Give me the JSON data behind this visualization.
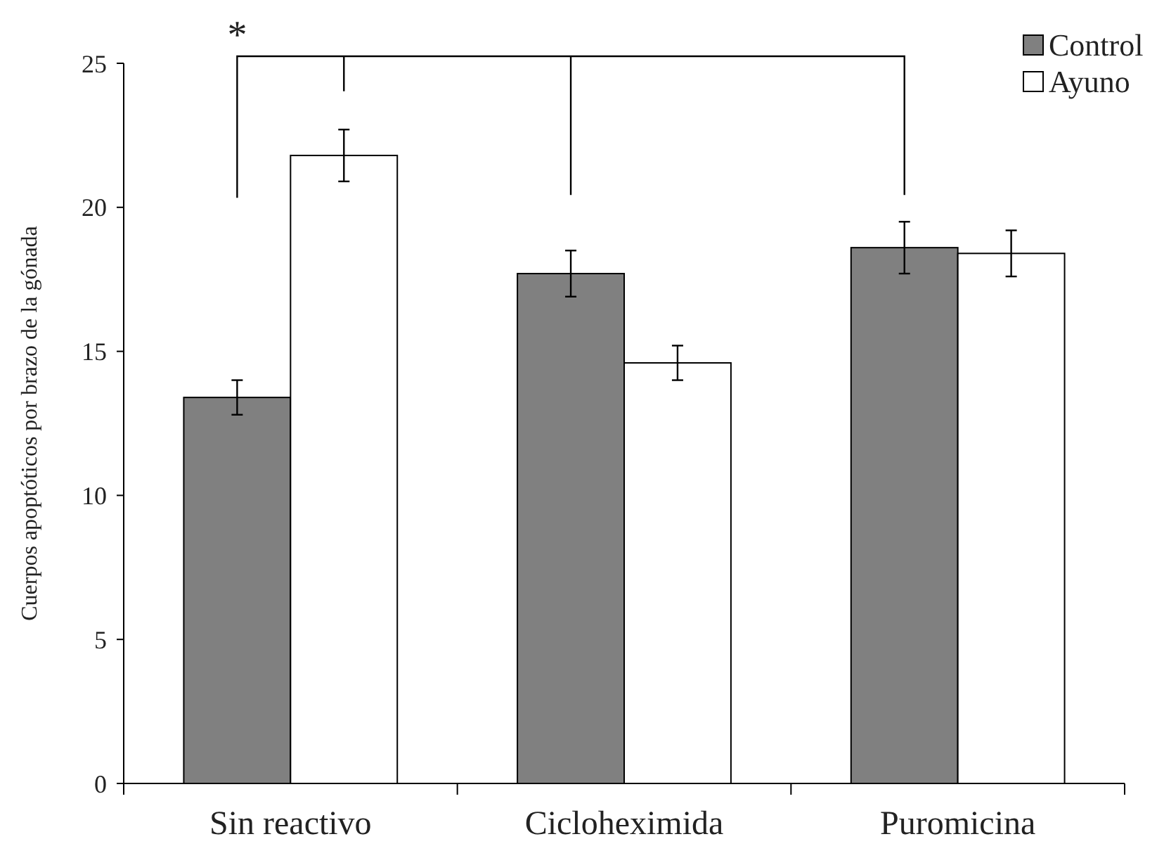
{
  "chart_data": {
    "type": "bar",
    "ylabel": "Cuerpos apoptóticos por brazo de la gónada",
    "categories": [
      "Sin reactivo",
      "Cicloheximida",
      "Puromicina"
    ],
    "series": [
      {
        "name": "Control",
        "color": "#808080",
        "values": [
          13.4,
          17.7,
          18.6
        ],
        "errors": [
          0.6,
          0.8,
          0.9
        ]
      },
      {
        "name": "Ayuno",
        "color": "#ffffff",
        "values": [
          21.8,
          14.6,
          18.4
        ],
        "errors": [
          0.9,
          0.6,
          0.8
        ]
      }
    ],
    "ylim": [
      0,
      25
    ],
    "yticks": [
      0,
      5,
      10,
      15,
      20,
      25
    ],
    "grid": false,
    "legend": "top right",
    "annotations": [
      "*"
    ]
  }
}
